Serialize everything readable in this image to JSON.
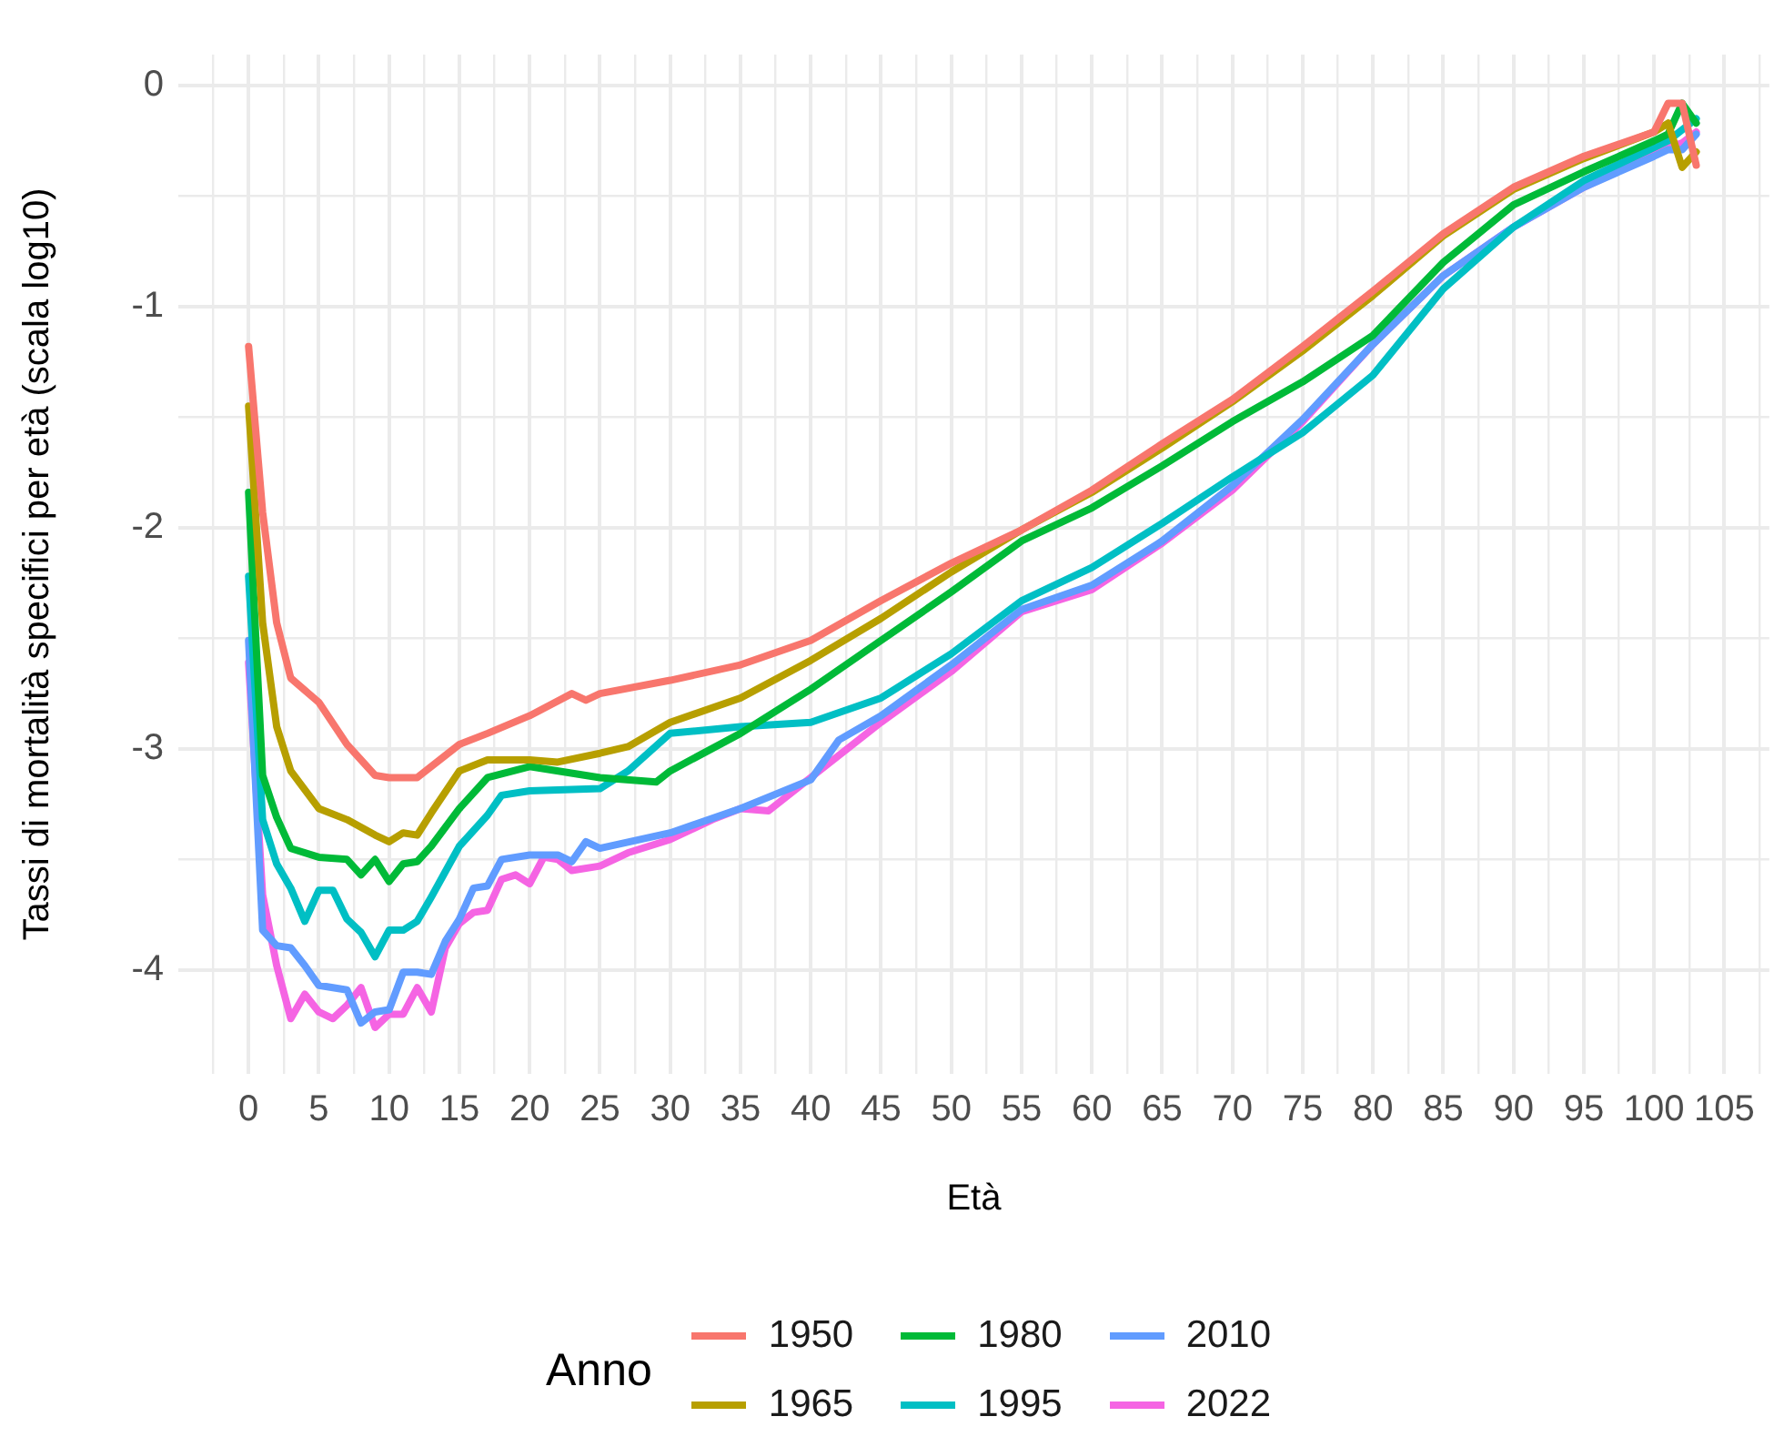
{
  "chart_data": {
    "type": "line",
    "xlabel": "Età",
    "ylabel": "Tassi di mortalità specifici per età (scala log10)",
    "legend_title": "Anno",
    "legend": "bottom",
    "grid": true,
    "marker": "none",
    "line_style": "solid",
    "xlim": [
      -5,
      108.2
    ],
    "ylim": [
      -4.47,
      0.14
    ],
    "xticks": [
      0,
      {
        "value": 2.5,
        "label": null
      },
      5,
      {
        "value": 7.5,
        "label": null
      },
      10,
      {
        "value": 12.5,
        "label": null
      },
      15,
      {
        "value": 17.5,
        "label": null
      },
      20,
      {
        "value": 22.5,
        "label": null
      },
      25,
      {
        "value": 27.5,
        "label": null
      },
      30,
      {
        "value": 32.5,
        "label": null
      },
      35,
      {
        "value": 37.5,
        "label": null
      },
      40,
      {
        "value": 42.5,
        "label": null
      },
      45,
      {
        "value": 47.5,
        "label": null
      },
      50,
      {
        "value": 52.5,
        "label": null
      },
      55,
      {
        "value": 57.5,
        "label": null
      },
      60,
      {
        "value": 62.5,
        "label": null
      },
      65,
      {
        "value": 67.5,
        "label": null
      },
      70,
      {
        "value": 72.5,
        "label": null
      },
      75,
      {
        "value": 77.5,
        "label": null
      },
      80,
      {
        "value": 82.5,
        "label": null
      },
      85,
      {
        "value": 87.5,
        "label": null
      },
      90,
      {
        "value": 92.5,
        "label": null
      },
      95,
      {
        "value": 97.5,
        "label": null
      },
      100,
      {
        "value": 102.5,
        "label": null
      },
      105,
      {
        "value": -2.5,
        "label": null
      },
      {
        "value": 107.5,
        "label": null
      }
    ],
    "yticks": [
      -4,
      {
        "value": -3.5,
        "label": null
      },
      -3,
      {
        "value": -2.5,
        "label": null
      },
      -2,
      {
        "value": -1.5,
        "label": null
      },
      -1,
      {
        "value": -0.5,
        "label": null
      },
      0
    ],
    "series": [
      {
        "name": "1950",
        "color": "#f8766d",
        "x": [
          0,
          1,
          2,
          3,
          5,
          7,
          9,
          10,
          12,
          15,
          17,
          20,
          23,
          24,
          25,
          30,
          35,
          40,
          45,
          50,
          55,
          60,
          65,
          70,
          75,
          80,
          85,
          90,
          95,
          100,
          101,
          102,
          103
        ],
        "values": [
          -1.18,
          -1.93,
          -2.43,
          -2.68,
          -2.79,
          -2.98,
          -3.12,
          -3.13,
          -3.13,
          -2.98,
          -2.93,
          -2.85,
          -2.75,
          -2.78,
          -2.75,
          -2.69,
          -2.62,
          -2.51,
          -2.33,
          -2.16,
          -2.01,
          -1.83,
          -1.62,
          -1.42,
          -1.18,
          -0.93,
          -0.67,
          -0.46,
          -0.32,
          -0.21,
          -0.08,
          -0.08,
          -0.36
        ]
      },
      {
        "name": "1965",
        "color": "#b79f00",
        "x": [
          0,
          1,
          2,
          3,
          5,
          7,
          9,
          10,
          11,
          12,
          13,
          15,
          17,
          20,
          22,
          25,
          27,
          30,
          35,
          40,
          45,
          50,
          55,
          60,
          65,
          70,
          75,
          80,
          85,
          90,
          95,
          100,
          101,
          102,
          103
        ],
        "values": [
          -1.45,
          -2.43,
          -2.9,
          -3.1,
          -3.27,
          -3.32,
          -3.39,
          -3.42,
          -3.38,
          -3.39,
          -3.29,
          -3.1,
          -3.05,
          -3.05,
          -3.06,
          -3.02,
          -2.99,
          -2.88,
          -2.77,
          -2.6,
          -2.41,
          -2.2,
          -2.01,
          -1.84,
          -1.64,
          -1.43,
          -1.2,
          -0.95,
          -0.68,
          -0.47,
          -0.33,
          -0.21,
          -0.17,
          -0.37,
          -0.3
        ]
      },
      {
        "name": "1980",
        "color": "#00ba38",
        "x": [
          0,
          1,
          2,
          3,
          5,
          7,
          8,
          9,
          10,
          11,
          12,
          13,
          15,
          17,
          20,
          25,
          29,
          30,
          35,
          40,
          45,
          50,
          55,
          60,
          65,
          70,
          75,
          80,
          85,
          90,
          95,
          100,
          101,
          102,
          103
        ],
        "values": [
          -1.84,
          -3.12,
          -3.31,
          -3.45,
          -3.49,
          -3.5,
          -3.57,
          -3.5,
          -3.6,
          -3.52,
          -3.51,
          -3.44,
          -3.27,
          -3.13,
          -3.08,
          -3.13,
          -3.15,
          -3.1,
          -2.93,
          -2.73,
          -2.51,
          -2.29,
          -2.06,
          -1.91,
          -1.72,
          -1.52,
          -1.34,
          -1.13,
          -0.8,
          -0.54,
          -0.39,
          -0.25,
          -0.22,
          -0.08,
          -0.17
        ]
      },
      {
        "name": "1995",
        "color": "#00bfc4",
        "x": [
          0,
          1,
          2,
          3,
          4,
          5,
          6,
          7,
          8,
          9,
          10,
          11,
          12,
          13,
          15,
          17,
          18,
          20,
          25,
          27,
          30,
          35,
          40,
          45,
          50,
          55,
          60,
          65,
          70,
          75,
          80,
          85,
          90,
          95,
          100,
          101,
          102,
          103
        ],
        "values": [
          -2.22,
          -3.32,
          -3.52,
          -3.63,
          -3.78,
          -3.64,
          -3.64,
          -3.77,
          -3.83,
          -3.94,
          -3.82,
          -3.82,
          -3.78,
          -3.67,
          -3.44,
          -3.3,
          -3.21,
          -3.19,
          -3.18,
          -3.1,
          -2.93,
          -2.9,
          -2.88,
          -2.77,
          -2.57,
          -2.33,
          -2.18,
          -1.98,
          -1.77,
          -1.57,
          -1.31,
          -0.92,
          -0.64,
          -0.43,
          -0.28,
          -0.25,
          -0.2,
          -0.15
        ]
      },
      {
        "name": "2010",
        "color": "#619cff",
        "x": [
          0,
          1,
          2,
          3,
          4,
          5,
          7,
          8,
          9,
          10,
          11,
          12,
          13,
          14,
          15,
          16,
          17,
          18,
          20,
          22,
          23,
          24,
          25,
          30,
          35,
          40,
          42,
          45,
          50,
          55,
          60,
          65,
          70,
          75,
          80,
          85,
          90,
          95,
          100,
          101,
          102,
          103
        ],
        "values": [
          -2.51,
          -3.82,
          -3.89,
          -3.9,
          -3.98,
          -4.07,
          -4.09,
          -4.24,
          -4.19,
          -4.18,
          -4.01,
          -4.01,
          -4.02,
          -3.87,
          -3.77,
          -3.63,
          -3.62,
          -3.5,
          -3.48,
          -3.48,
          -3.51,
          -3.42,
          -3.45,
          -3.38,
          -3.27,
          -3.14,
          -2.96,
          -2.85,
          -2.62,
          -2.37,
          -2.26,
          -2.06,
          -1.81,
          -1.51,
          -1.17,
          -0.86,
          -0.64,
          -0.46,
          -0.32,
          -0.29,
          -0.29,
          -0.22
        ]
      },
      {
        "name": "2022",
        "color": "#f564e3",
        "x": [
          0,
          1,
          2,
          3,
          4,
          5,
          6,
          7,
          8,
          9,
          10,
          11,
          12,
          13,
          14,
          15,
          16,
          17,
          18,
          19,
          20,
          21,
          22,
          23,
          25,
          27,
          30,
          33,
          35,
          37,
          40,
          45,
          50,
          55,
          60,
          65,
          70,
          75,
          80,
          85,
          90,
          95,
          100,
          101,
          102,
          103
        ],
        "values": [
          -2.61,
          -3.66,
          -3.98,
          -4.22,
          -4.11,
          -4.19,
          -4.22,
          -4.16,
          -4.08,
          -4.26,
          -4.2,
          -4.2,
          -4.08,
          -4.19,
          -3.9,
          -3.79,
          -3.74,
          -3.73,
          -3.59,
          -3.57,
          -3.61,
          -3.49,
          -3.5,
          -3.55,
          -3.53,
          -3.47,
          -3.41,
          -3.32,
          -3.27,
          -3.28,
          -3.13,
          -2.88,
          -2.65,
          -2.38,
          -2.28,
          -2.07,
          -1.83,
          -1.52,
          -1.17,
          -0.86,
          -0.64,
          -0.46,
          -0.31,
          -0.28,
          -0.26,
          -0.21
        ]
      }
    ]
  }
}
